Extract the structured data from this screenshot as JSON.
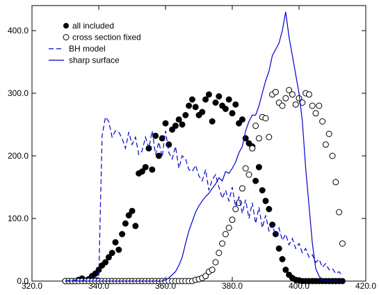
{
  "colors": {
    "axis": "#000000",
    "filled_marker": "#000000",
    "open_marker": "#000000",
    "model_line": "#0000cc"
  },
  "chart_data": {
    "type": "scatter",
    "title": "",
    "xlabel": "",
    "ylabel": "",
    "xlim": [
      320,
      420
    ],
    "ylim": [
      0,
      440
    ],
    "xticks": [
      320,
      340,
      360,
      380,
      400,
      420
    ],
    "xtick_labels": [
      "320.0",
      "340.0",
      "360.0",
      "380.0",
      "400.0",
      "420.0"
    ],
    "yticks": [
      0,
      100,
      200,
      300,
      400
    ],
    "ytick_labels": [
      "0.0",
      "100.0",
      "200.0",
      "300.0",
      "400.0"
    ],
    "grid": false,
    "legend_position": "top-left",
    "series": [
      {
        "name": "all included",
        "style": "filled-circle",
        "x": [
          330,
          331,
          332,
          333,
          334,
          335,
          336,
          337,
          338,
          339,
          340,
          341,
          342,
          343,
          344,
          345,
          346,
          347,
          348,
          349,
          350,
          351,
          352,
          353,
          354,
          355,
          356,
          357,
          358,
          359,
          360,
          361,
          362,
          363,
          364,
          365,
          366,
          367,
          368,
          369,
          370,
          371,
          372,
          373,
          374,
          375,
          376,
          377,
          378,
          379,
          380,
          381,
          382,
          383,
          384,
          385,
          386,
          387,
          388,
          389,
          390,
          391,
          392,
          393,
          394,
          395,
          396,
          397,
          398,
          399,
          400,
          401,
          402,
          403,
          404,
          405,
          406,
          407,
          408,
          409,
          410,
          411,
          412,
          413
        ],
        "y": [
          0,
          0,
          0,
          0,
          2,
          4,
          1,
          3,
          8,
          12,
          18,
          25,
          30,
          38,
          45,
          62,
          50,
          75,
          92,
          105,
          112,
          88,
          172,
          175,
          182,
          212,
          178,
          232,
          200,
          228,
          252,
          218,
          242,
          248,
          258,
          250,
          265,
          280,
          290,
          278,
          265,
          270,
          290,
          298,
          255,
          285,
          295,
          280,
          275,
          290,
          268,
          282,
          252,
          258,
          228,
          220,
          215,
          160,
          182,
          145,
          128,
          115,
          90,
          75,
          52,
          35,
          18,
          10,
          5,
          2,
          1,
          0,
          0,
          0,
          0,
          0,
          0,
          0,
          0,
          0,
          0,
          0,
          0,
          0
        ]
      },
      {
        "name": "cross section fixed",
        "style": "open-circle",
        "x": [
          330,
          331,
          332,
          333,
          334,
          335,
          336,
          337,
          338,
          339,
          340,
          341,
          342,
          343,
          344,
          345,
          346,
          347,
          348,
          349,
          350,
          351,
          352,
          353,
          354,
          355,
          356,
          357,
          358,
          359,
          360,
          361,
          362,
          363,
          364,
          365,
          366,
          367,
          368,
          369,
          370,
          371,
          372,
          373,
          374,
          375,
          376,
          377,
          378,
          379,
          380,
          381,
          382,
          383,
          384,
          385,
          386,
          387,
          388,
          389,
          390,
          391,
          392,
          393,
          394,
          395,
          396,
          397,
          398,
          399,
          400,
          401,
          402,
          403,
          404,
          405,
          406,
          407,
          408,
          409,
          410,
          411,
          412,
          413
        ],
        "y": [
          0,
          0,
          0,
          0,
          0,
          0,
          0,
          0,
          0,
          0,
          0,
          0,
          0,
          0,
          0,
          0,
          0,
          0,
          0,
          0,
          0,
          0,
          0,
          0,
          0,
          0,
          0,
          0,
          0,
          0,
          0,
          0,
          0,
          0,
          0,
          0,
          0,
          0,
          0,
          2,
          3,
          5,
          8,
          15,
          18,
          30,
          45,
          60,
          75,
          85,
          98,
          115,
          125,
          148,
          180,
          170,
          212,
          248,
          228,
          262,
          260,
          230,
          298,
          302,
          285,
          280,
          292,
          305,
          298,
          282,
          292,
          285,
          300,
          298,
          280,
          268,
          280,
          255,
          218,
          235,
          200,
          158,
          110,
          60
        ]
      },
      {
        "name": "BH model",
        "style": "dashed-line",
        "x": [
          330,
          331,
          332,
          333,
          334,
          335,
          336,
          337,
          338,
          339,
          340,
          341,
          342,
          343,
          344,
          345,
          346,
          347,
          348,
          349,
          350,
          351,
          352,
          353,
          354,
          355,
          356,
          357,
          358,
          359,
          360,
          361,
          362,
          363,
          364,
          365,
          366,
          367,
          368,
          369,
          370,
          371,
          372,
          373,
          374,
          375,
          376,
          377,
          378,
          379,
          380,
          381,
          382,
          383,
          384,
          385,
          386,
          387,
          388,
          389,
          390,
          391,
          392,
          393,
          394,
          395,
          396,
          397,
          398,
          399,
          400,
          401,
          402,
          403,
          404,
          405,
          406,
          407,
          408,
          409,
          410,
          411,
          412,
          413
        ],
        "y": [
          0,
          1,
          0,
          2,
          1,
          0,
          3,
          5,
          8,
          6,
          4,
          232,
          262,
          255,
          230,
          240,
          238,
          228,
          212,
          238,
          218,
          230,
          202,
          208,
          230,
          212,
          240,
          202,
          222,
          198,
          240,
          205,
          195,
          215,
          180,
          200,
          195,
          178,
          175,
          185,
          168,
          160,
          178,
          145,
          162,
          170,
          150,
          132,
          145,
          128,
          150,
          118,
          135,
          108,
          130,
          100,
          125,
          92,
          118,
          85,
          105,
          80,
          90,
          72,
          85,
          65,
          75,
          58,
          68,
          52,
          60,
          45,
          52,
          38,
          42,
          30,
          35,
          22,
          28,
          18,
          20,
          12,
          15,
          8
        ]
      },
      {
        "name": "sharp surface",
        "style": "solid-line",
        "x": [
          330,
          331,
          332,
          333,
          334,
          335,
          336,
          337,
          338,
          339,
          340,
          341,
          342,
          343,
          344,
          345,
          346,
          347,
          348,
          349,
          350,
          351,
          352,
          353,
          354,
          355,
          356,
          357,
          358,
          359,
          360,
          361,
          362,
          363,
          364,
          365,
          366,
          367,
          368,
          369,
          370,
          371,
          372,
          373,
          374,
          375,
          376,
          377,
          378,
          379,
          380,
          381,
          382,
          383,
          384,
          385,
          386,
          387,
          388,
          389,
          390,
          391,
          392,
          393,
          394,
          395,
          396,
          397,
          398,
          399,
          400,
          401,
          402,
          403,
          404,
          405,
          406,
          407,
          408,
          409,
          410,
          411,
          412,
          413
        ],
        "y": [
          0,
          0,
          0,
          0,
          0,
          0,
          0,
          0,
          0,
          0,
          0,
          0,
          0,
          0,
          0,
          0,
          0,
          0,
          0,
          0,
          0,
          0,
          0,
          0,
          0,
          0,
          0,
          0,
          0,
          0,
          2,
          5,
          10,
          15,
          25,
          38,
          60,
          80,
          95,
          110,
          120,
          128,
          135,
          140,
          148,
          155,
          165,
          160,
          175,
          172,
          180,
          190,
          205,
          215,
          240,
          255,
          265,
          265,
          280,
          300,
          320,
          335,
          360,
          370,
          380,
          400,
          430,
          390,
          360,
          330,
          300,
          255,
          180,
          120,
          60,
          20,
          8,
          2,
          0,
          0,
          0,
          0,
          0,
          0
        ]
      }
    ]
  }
}
